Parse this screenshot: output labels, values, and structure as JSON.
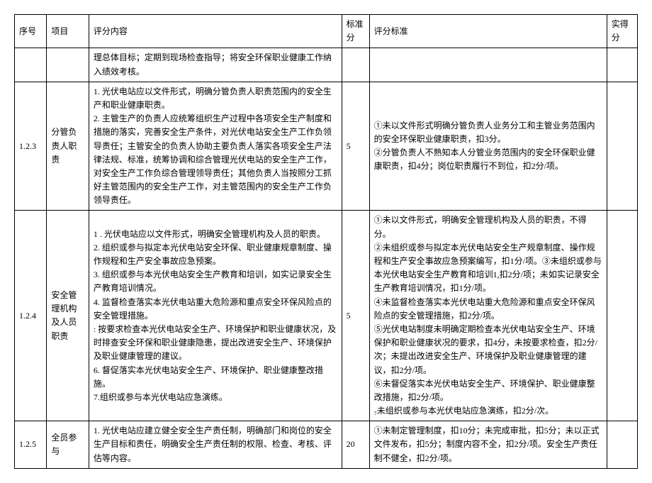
{
  "headers": {
    "num": "序号",
    "item": "项目",
    "content": "评分内容",
    "std": "标准分",
    "criteria": "评分标准",
    "score": "实得分"
  },
  "rows": [
    {
      "num": "",
      "item": "",
      "content": "理总体目标；定期到现场检查指导；将安全环保职业健康工作纳入绩效考核。",
      "std": "",
      "criteria": "",
      "score": ""
    },
    {
      "num": "1.2.3",
      "item": "分管负责人职责",
      "content": "1. 光伏电站应以文件形式，明确分管负责人职责范围内的安全生产和职业健康职责。\n2. 主管生产的负责人应统筹组织生产过程中各项安全生产制度和措施的落实，完善安全生产条件，对光伏电站安全生产工作负领导责任；主管安全的负责人协助主要负责人落实各项安全生产法律法规、标准，统筹协调和综合管理光伏电站的安全生产工作，对安全生产工作负综合管理领导责任；其他负责人当按照分工抓好主管范围内的安全生产工作，对主管范围内的安全生产工作负领导责任。",
      "std": "5",
      "criteria": "①未以文件形式明确分管负责人业务分工和主管业务范围内的安全环保职业健康职责，扣3分。\n②分管负责人不熟知本人分管业务范围内的安全环保职业健康职责，扣4分；岗位职责履行不到位，扣2分/项。",
      "score": ""
    },
    {
      "num": "1.2.4",
      "item": "安全管理机构及人员职责",
      "content": "1 . 光伏电站应以文件形式，明确安全管理机构及人员的职责。\n2. 组织或参与拟定本光伏电站安全环保、职业健康规章制度、操作规程和生产安全事故应急预案。\n3. 组织或参与本光伏电站安全生产教育和培训，如实记录安全生产教育培训情况。\n4. 监督检查落实本光伏电站重大危险源和重点安全环保风险点的安全管理措施。\n: 按要求检查本光伏电站安全生产、环境保护和职业健康状况，及时排查安全环保和职业健康隐患，提出改进安全生产、环境保护及职业健康管理的建议。\n6. 督促落实本光伏电站安全生产、环境保护、职业健康整改措施。\n7.组织或参与本光伏电站应急演练。",
      "std": "5",
      "criteria": "①未以文件形式，明确安全管理机构及人员的职责，不得分。\n②未组织或参与拟定本光伏电站安全生产规章制度、操作规程和生产安全事故应急预案编写，扣1分/项。③未组织或参与本光伏电站安全生产教育和培训1,扣2分/项；未如实记录安全生产教育培训情况，扣1分/项。\n④未监督检查落实本光伏电站重大危险源和重点安全环保风险点的安全管理措施，扣2分/项。\n⑤光伏电站制度未明确定期检查本光伏电站安全生产、环境保护和职业健康状况的要求，扣4分，未按要求检查，扣2分/次；未提出改进安全生产、环境保护及职业健康管理的建议，扣2分/项。\n⑥未督促落实本光伏电站安全生产、环境保护、职业健康整改措施，扣2分/项。\n₇未组织或参与本光伏电站应急演练，扣2分/次。",
      "score": ""
    },
    {
      "num": "1.2.5",
      "item": "全员参与",
      "content": "1. 光伏电站应建立健全安全生产责任制，明确部门和岗位的安全生产目标和责任，明确安全生产责任制的权限、检查、考核、评估等内容。",
      "std": "20",
      "criteria": "①未制定管理制度，扣10分；未完成审批，扣5分；未以正式文件发布，扣5分；制度内容不全，扣2分/项。安全生产责任制不健全，扣2分/项。",
      "score": ""
    }
  ]
}
